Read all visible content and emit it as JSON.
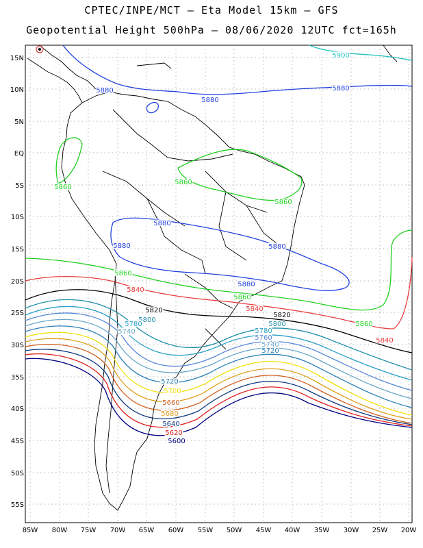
{
  "header": {
    "line1": "CPTEC/INPE/MCT –  Eta Model 15km – GFS",
    "line2": "Geopotential Height 500hPa – 08/06/2020 12UTC fct=165h"
  },
  "axes": {
    "lat_labels": [
      "15N",
      "10N",
      "5N",
      "EQ",
      "5S",
      "10S",
      "15S",
      "20S",
      "25S",
      "30S",
      "35S",
      "40S",
      "45S",
      "50S",
      "55S"
    ],
    "lon_labels": [
      "85W",
      "80W",
      "75W",
      "70W",
      "65W",
      "60W",
      "55W",
      "50W",
      "45W",
      "40W",
      "35W",
      "30W",
      "25W",
      "20W"
    ]
  },
  "contours": [
    {
      "level": "5900",
      "color": "#20c0c0"
    },
    {
      "level": "5880",
      "color": "#2040e0"
    },
    {
      "level": "5860",
      "color": "#20d020"
    },
    {
      "level": "5840",
      "color": "#e83c3c"
    },
    {
      "level": "5820",
      "color": "#000000"
    },
    {
      "level": "5800",
      "color": "#1f8fa8"
    },
    {
      "level": "5780",
      "color": "#2aa0c8"
    },
    {
      "level": "5760",
      "color": "#5a8ad8"
    },
    {
      "level": "5740",
      "color": "#6aa8c8"
    },
    {
      "level": "5720",
      "color": "#2a80b8"
    },
    {
      "level": "5700",
      "color": "#f0e010"
    },
    {
      "level": "5680",
      "color": "#e0a020"
    },
    {
      "level": "5660",
      "color": "#d06020"
    },
    {
      "level": "5640",
      "color": "#103880"
    },
    {
      "level": "5620",
      "color": "#e02020"
    },
    {
      "level": "5600",
      "color": "#000080"
    }
  ],
  "contour_labels": [
    {
      "text": "5900",
      "c": "#20c0c0"
    },
    {
      "text": "5880",
      "c": "#2040e0"
    },
    {
      "text": "5880",
      "c": "#2040e0"
    },
    {
      "text": "5880",
      "c": "#2040e0"
    },
    {
      "text": "5880",
      "c": "#2040e0"
    },
    {
      "text": "5880",
      "c": "#2040e0"
    },
    {
      "text": "5880",
      "c": "#2040e0"
    },
    {
      "text": "5880",
      "c": "#2040e0"
    },
    {
      "text": "5860",
      "c": "#20d020"
    },
    {
      "text": "5860",
      "c": "#20d020"
    },
    {
      "text": "5860",
      "c": "#20d020"
    },
    {
      "text": "5860",
      "c": "#20d020"
    },
    {
      "text": "5860",
      "c": "#20d020"
    },
    {
      "text": "5860",
      "c": "#20d020"
    },
    {
      "text": "5840",
      "c": "#e83c3c"
    },
    {
      "text": "5840",
      "c": "#e83c3c"
    },
    {
      "text": "5840",
      "c": "#e83c3c"
    },
    {
      "text": "5820",
      "c": "#000000"
    },
    {
      "text": "5820",
      "c": "#000000"
    },
    {
      "text": "5800",
      "c": "#1f8fa8"
    },
    {
      "text": "5800",
      "c": "#1f8fa8"
    },
    {
      "text": "5780",
      "c": "#2aa0c8"
    },
    {
      "text": "5780",
      "c": "#2aa0c8"
    },
    {
      "text": "5760",
      "c": "#5a8ad8"
    },
    {
      "text": "5760",
      "c": "#5a8ad8"
    },
    {
      "text": "5740",
      "c": "#6aa8c8"
    },
    {
      "text": "5740",
      "c": "#6aa8c8"
    },
    {
      "text": "5720",
      "c": "#2a80b8"
    },
    {
      "text": "5720",
      "c": "#2a80b8"
    },
    {
      "text": "5700",
      "c": "#f0e010"
    },
    {
      "text": "5680",
      "c": "#e0a020"
    },
    {
      "text": "5660",
      "c": "#d06020"
    },
    {
      "text": "5640",
      "c": "#103880"
    },
    {
      "text": "5620",
      "c": "#e02020"
    },
    {
      "text": "5600",
      "c": "#000080"
    }
  ]
}
